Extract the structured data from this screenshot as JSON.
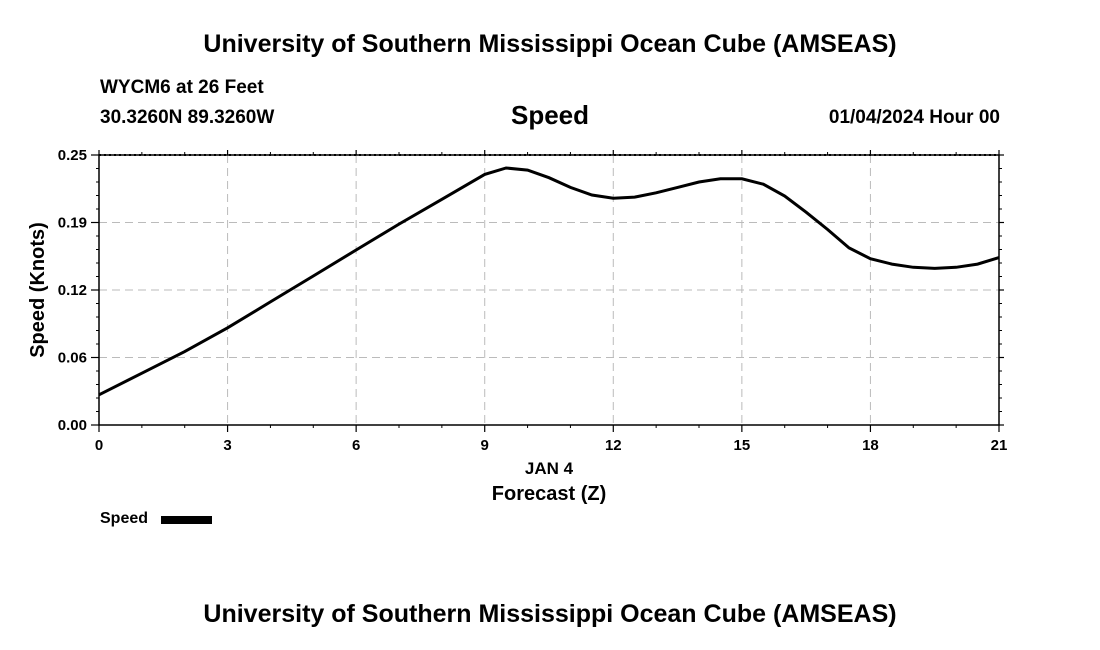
{
  "header": {
    "top_title": "University of Southern Mississippi Ocean Cube (AMSEAS)",
    "station": "WYCM6 at 26 Feet",
    "coords": "30.3260N  89.3260W",
    "datetime": "01/04/2024 Hour 00",
    "bottom_title": "University of Southern Mississippi Ocean Cube (AMSEAS)"
  },
  "chart_data": {
    "type": "line",
    "title": "Speed",
    "xlabel": "Forecast (Z)",
    "xsublabel": "JAN 4",
    "ylabel": "Speed (Knots)",
    "xlim": [
      0,
      21
    ],
    "ylim": [
      0,
      0.25
    ],
    "xticks": [
      0,
      3,
      6,
      9,
      12,
      15,
      18,
      21
    ],
    "xtick_labels": [
      "0",
      "3",
      "6",
      "9",
      "12",
      "15",
      "18",
      "21"
    ],
    "yticks": [
      0,
      0.0625,
      0.125,
      0.1875,
      0.25
    ],
    "ytick_labels": [
      "0.00",
      "0.06",
      "0.12",
      "0.19",
      "0.25"
    ],
    "grid": true,
    "legend_position": "bottom-left",
    "series": [
      {
        "name": "Speed",
        "color": "#000000",
        "x": [
          0,
          1,
          2,
          3,
          4,
          5,
          6,
          7,
          8,
          9,
          9.5,
          10,
          10.5,
          11,
          11.5,
          12,
          12.5,
          13,
          13.5,
          14,
          14.5,
          15,
          15.5,
          16,
          16.5,
          17,
          17.5,
          18,
          18.5,
          19,
          19.5,
          20,
          20.5,
          21
        ],
        "values": [
          0.028,
          0.048,
          0.068,
          0.09,
          0.114,
          0.138,
          0.162,
          0.186,
          0.209,
          0.232,
          0.238,
          0.236,
          0.229,
          0.22,
          0.213,
          0.21,
          0.211,
          0.215,
          0.22,
          0.225,
          0.228,
          0.228,
          0.223,
          0.212,
          0.197,
          0.181,
          0.164,
          0.154,
          0.149,
          0.146,
          0.145,
          0.146,
          0.149,
          0.155
        ]
      }
    ]
  }
}
